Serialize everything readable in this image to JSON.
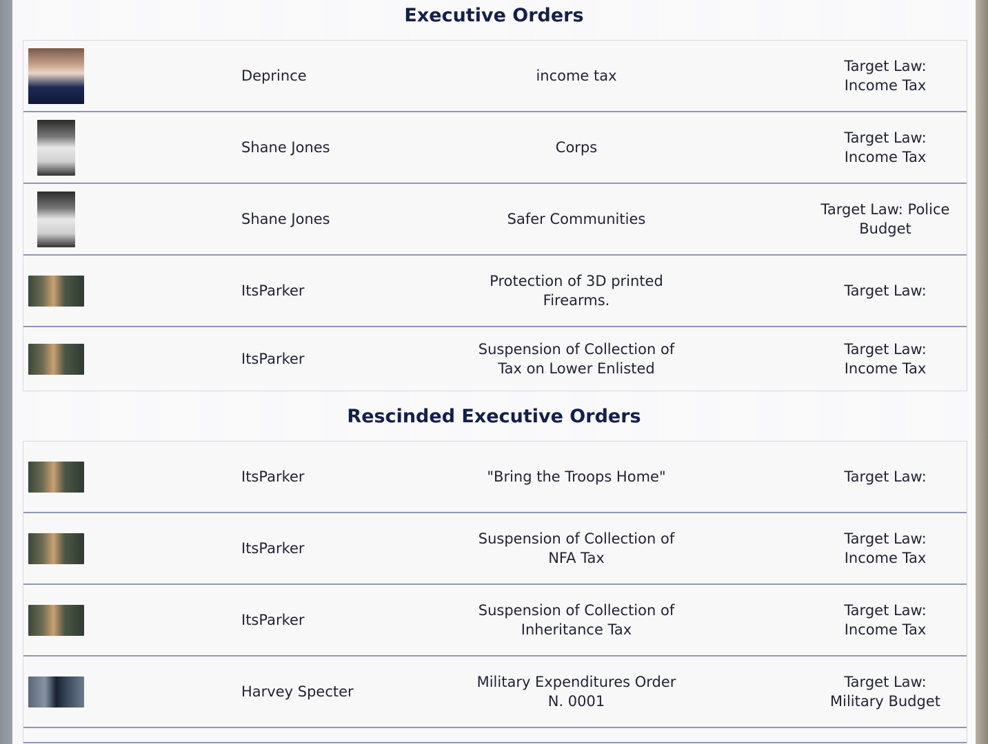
{
  "sections": [
    {
      "title": "Executive Orders",
      "rows": [
        {
          "avatar": "portrait-photo",
          "name": "Deprince",
          "order": "income tax",
          "target": "Target Law: Income Tax"
        },
        {
          "avatar": "bw-photo",
          "name": "Shane Jones",
          "order": "Corps",
          "target": "Target Law: Income Tax"
        },
        {
          "avatar": "bw-photo",
          "name": "Shane Jones",
          "order": "Safer Communities",
          "target": "Target Law: Police Budget"
        },
        {
          "avatar": "group-photo",
          "name": "ItsParker",
          "order": "Protection of 3D printed Firearms.",
          "target": "Target Law:"
        },
        {
          "avatar": "group-photo",
          "name": "ItsParker",
          "order": "Suspension of Collection of Tax on Lower Enlisted",
          "target": "Target Law: Income Tax"
        }
      ]
    },
    {
      "title": "Rescinded Executive Orders",
      "rows": [
        {
          "avatar": "group-photo",
          "name": "ItsParker",
          "order": "\"Bring the Troops Home\"",
          "target": "Target Law:"
        },
        {
          "avatar": "group-photo",
          "name": "ItsParker",
          "order": "Suspension of Collection of NFA Tax",
          "target": "Target Law: Income Tax"
        },
        {
          "avatar": "group-photo",
          "name": "ItsParker",
          "order": "Suspension of Collection of Inheritance Tax",
          "target": "Target Law: Income Tax"
        },
        {
          "avatar": "suit-photo",
          "name": "Harvey Specter",
          "order": "Military Expenditures Order N. 0001",
          "target": "Target Law: Military Budget"
        }
      ]
    }
  ]
}
